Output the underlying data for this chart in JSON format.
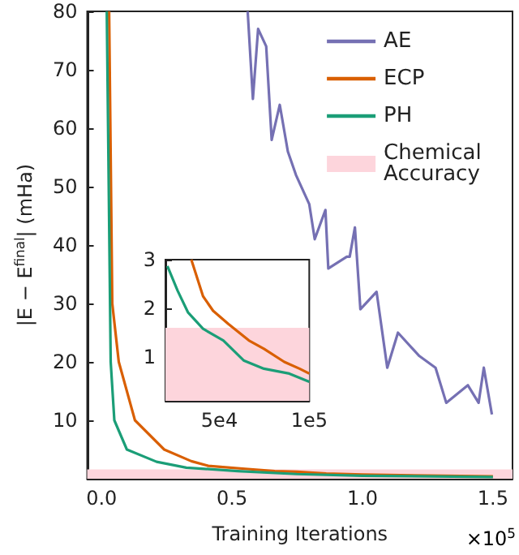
{
  "chart_data": [
    {
      "type": "line",
      "xlabel": "Training Iterations",
      "ylabel": "|E − E$^{final}$| (mHa)",
      "xlim": [
        -0.055,
        1.575
      ],
      "ylim": [
        0,
        80
      ],
      "xticks": [
        {
          "value": 0,
          "label": "0.0"
        },
        0.5,
        {
          "value": 1,
          "label": "1.0"
        },
        1.5
      ],
      "yticks": [
        10,
        20,
        30,
        40,
        50,
        60,
        70,
        80
      ],
      "annotations": [
        "×10$^{5}$"
      ],
      "legend": "top right",
      "grid": false,
      "marker": "none",
      "line_style": "solid",
      "bands": [
        {
          "axis": "y",
          "from": 0,
          "to": 1.6,
          "label": "Chemical Accuracy",
          "color": "#fdd5dc"
        }
      ],
      "series": [
        {
          "name": "AE",
          "color": "#7570b3",
          "x": [
            0.56,
            0.58,
            0.6,
            0.631,
            0.652,
            0.683,
            0.714,
            0.745,
            0.796,
            0.817,
            0.858,
            0.869,
            0.94,
            0.951,
            0.971,
            0.992,
            1.054,
            1.095,
            1.136,
            1.218,
            1.28,
            1.321,
            1.404,
            1.445,
            1.465,
            1.496
          ],
          "values": [
            80,
            65,
            77,
            74,
            58,
            64,
            56,
            52,
            47,
            41,
            46,
            36,
            38,
            38,
            43,
            29,
            32,
            19,
            25,
            21,
            19,
            13,
            16,
            13,
            19,
            11
          ]
        },
        {
          "name": "ECP",
          "color": "#d95f02",
          "x": [
            0.029,
            0.041,
            0.066,
            0.128,
            0.24,
            0.344,
            0.409,
            0.465,
            0.55,
            0.664,
            0.748,
            0.861,
            1.0,
            1.5
          ],
          "values": [
            80,
            30,
            20,
            10,
            5,
            3,
            2.2,
            2,
            1.7,
            1.3,
            1.2,
            0.9,
            0.7,
            0.4
          ]
        },
        {
          "name": "PH",
          "color": "#1b9e77",
          "x": [
            0.02,
            0.035,
            0.049,
            0.097,
            0.211,
            0.325,
            0.522,
            0.748,
            1.0,
            1.5
          ],
          "values": [
            80,
            20,
            10,
            5,
            2.9,
            1.9,
            1.3,
            0.8,
            0.5,
            0.3
          ]
        }
      ]
    },
    {
      "type": "line",
      "xlim": [
        20000,
        100000
      ],
      "ylim": [
        0.1,
        3
      ],
      "xticks": [
        {
          "value": 50000,
          "label": "5e4"
        },
        {
          "value": 100000,
          "label": "1e5"
        }
      ],
      "yticks": [
        1,
        2,
        3
      ],
      "legend": false,
      "grid": false,
      "marker": "none",
      "line_style": "solid",
      "bands": [
        {
          "axis": "y",
          "from": 0.1,
          "to": 1.6,
          "color": "#fdd5dc"
        }
      ],
      "series": [
        {
          "color": "#d95f02",
          "x": [
            34400,
            40900,
            46500,
            55000,
            66400,
            74800,
            86100,
            94600,
            100000
          ],
          "values": [
            3,
            2.25,
            1.95,
            1.68,
            1.34,
            1.17,
            0.9,
            0.76,
            0.66
          ]
        },
        {
          "color": "#1b9e77",
          "x": [
            21100,
            26800,
            32500,
            40900,
            52200,
            63500,
            74800,
            88900,
            100000
          ],
          "values": [
            2.87,
            2.36,
            1.92,
            1.58,
            1.34,
            0.93,
            0.76,
            0.66,
            0.49
          ]
        }
      ]
    }
  ]
}
